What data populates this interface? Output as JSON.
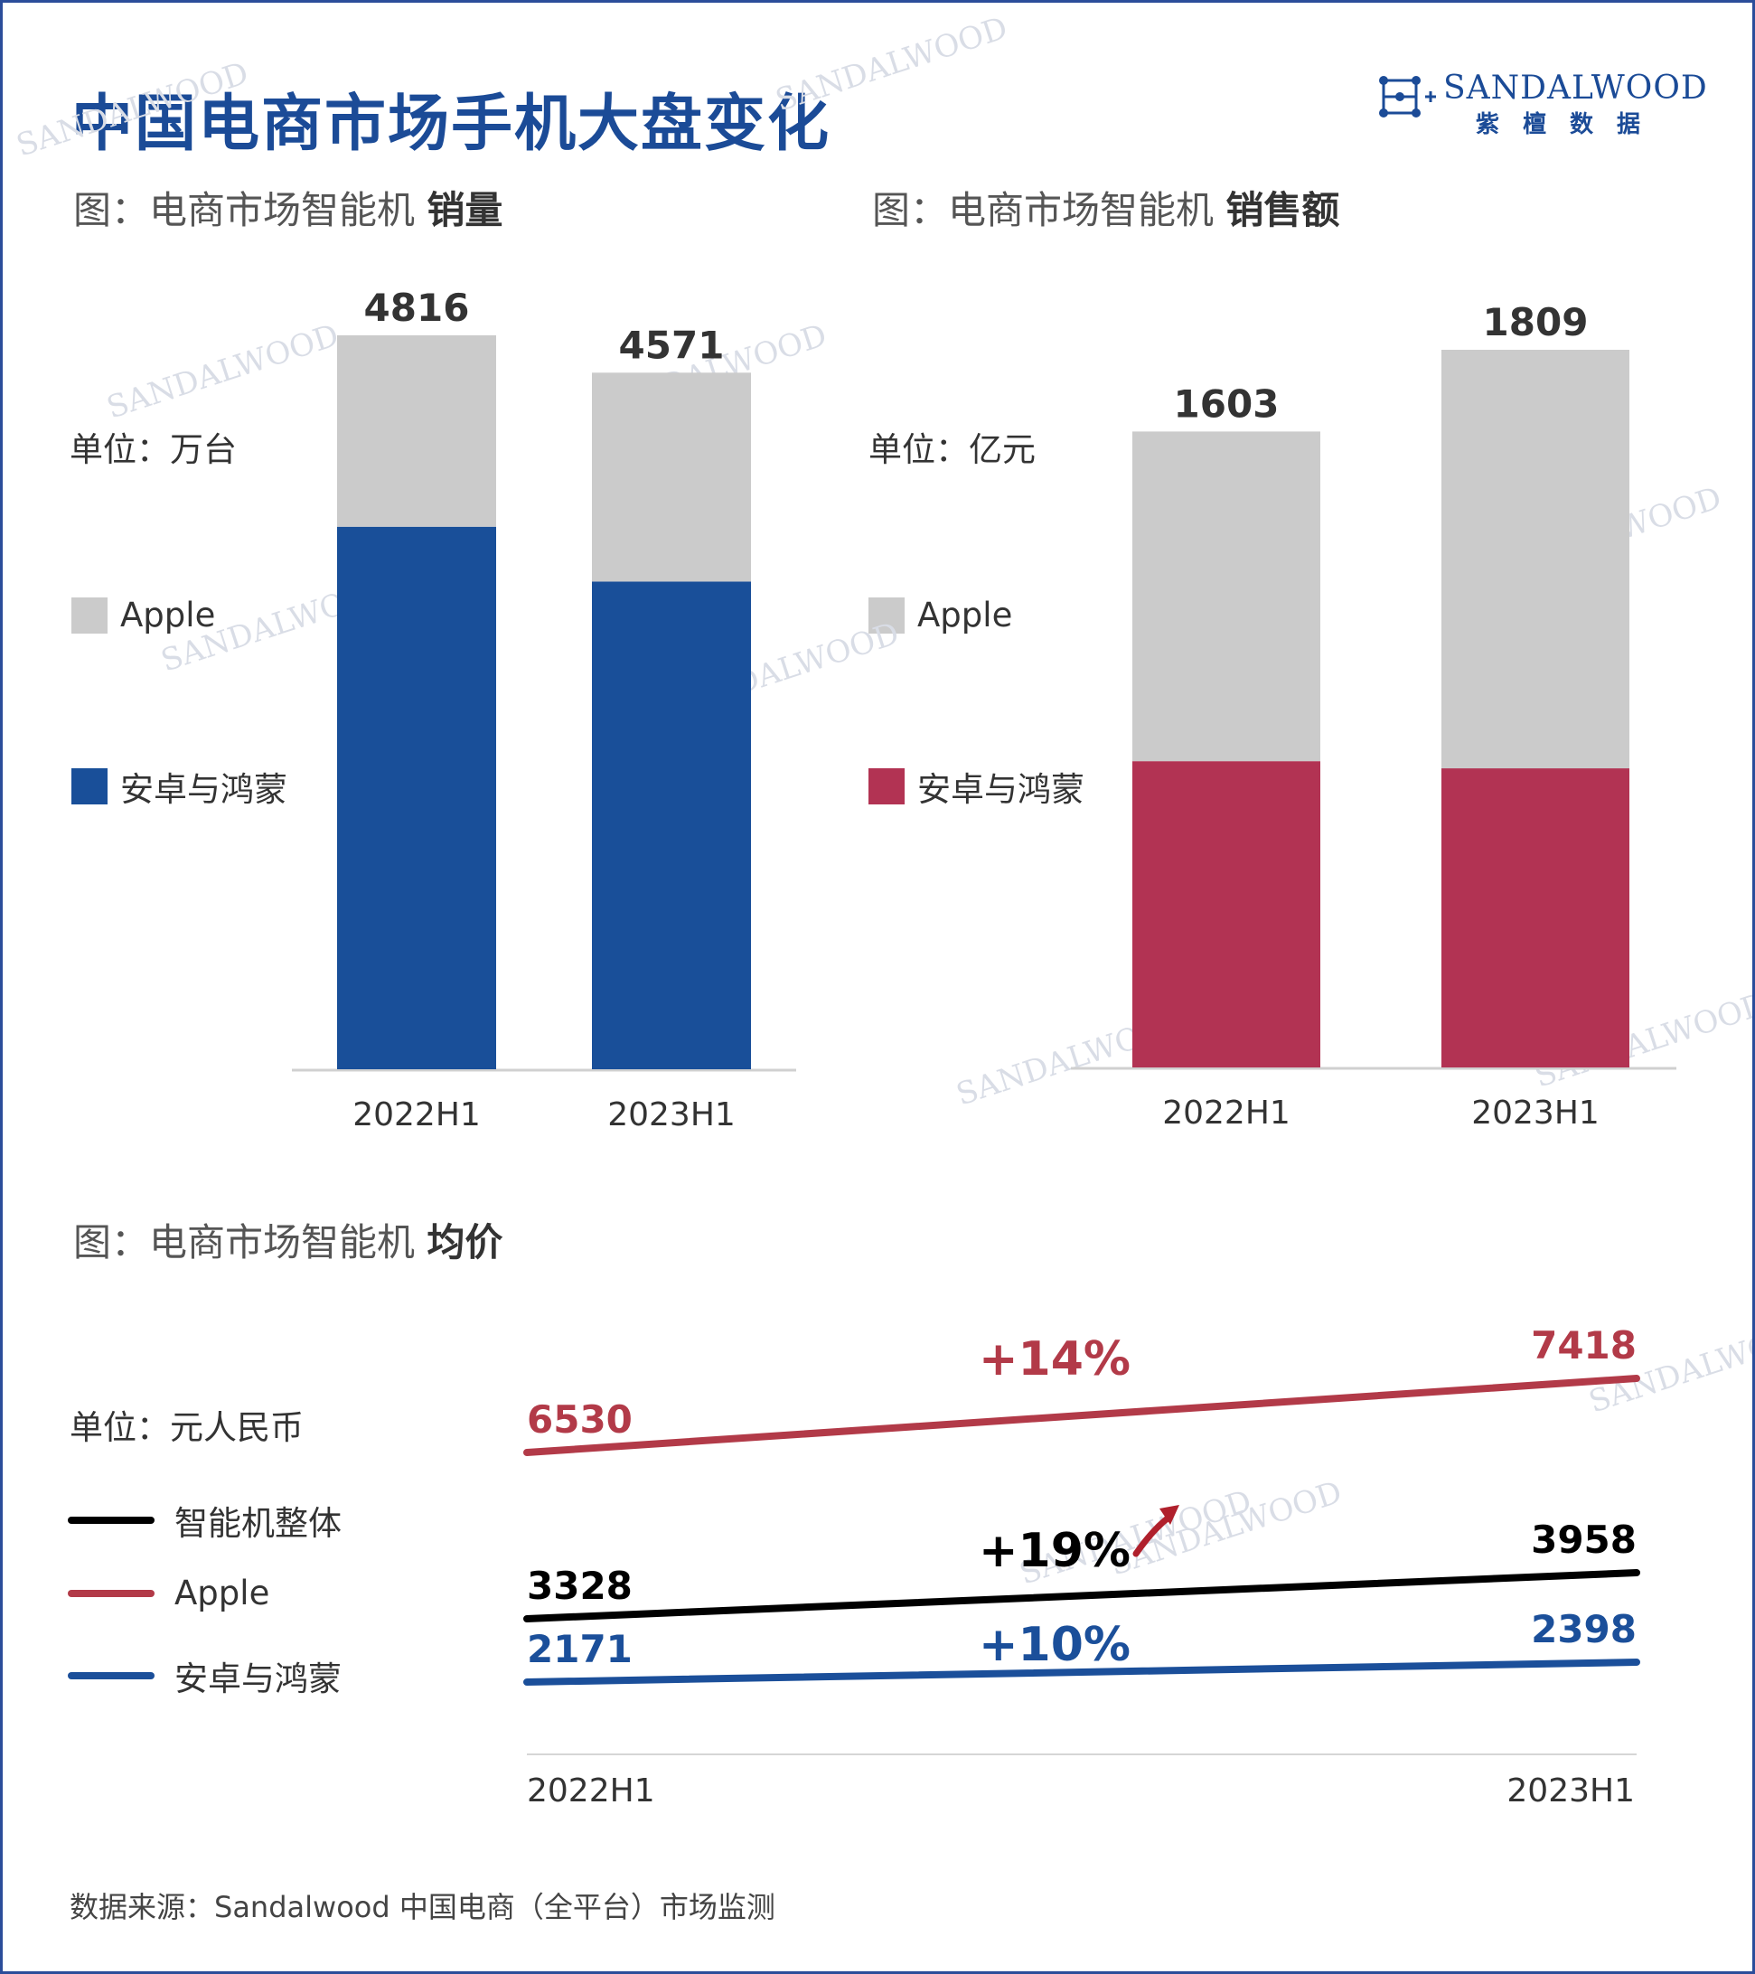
{
  "header": {
    "title": "中国电商市场手机大盘变化",
    "logo_en": "SANDALWOOD",
    "logo_cn": "紫檀数据",
    "watermark": "SANDALWOOD"
  },
  "colors": {
    "apple_gray": "#cbcbcb",
    "android_blue": "#194f99",
    "android_red": "#b23353",
    "overall_black": "#000000",
    "apple_line": "#b23a48",
    "android_line": "#1b4f9a"
  },
  "chart_volume": {
    "subtitle_prefix": "图：电商市场智能机 ",
    "subtitle_bold": "销量",
    "unit": "单位：万台",
    "legend": [
      {
        "label": "Apple",
        "color": "#cbcbcb"
      },
      {
        "label": "安卓与鸿蒙",
        "color": "#194f99"
      }
    ]
  },
  "chart_revenue": {
    "subtitle_prefix": "图：电商市场智能机 ",
    "subtitle_bold": "销售额",
    "unit": "单位：亿元",
    "legend": [
      {
        "label": "Apple",
        "color": "#cbcbcb"
      },
      {
        "label": "安卓与鸿蒙",
        "color": "#b23353"
      }
    ]
  },
  "chart_price": {
    "subtitle_prefix": "图：电商市场智能机 ",
    "subtitle_bold": "均价",
    "unit": "单位：元人民币",
    "legend": [
      {
        "label": "智能机整体",
        "color": "#000000"
      },
      {
        "label": "Apple",
        "color": "#b23a48"
      },
      {
        "label": "安卓与鸿蒙",
        "color": "#1b4f9a"
      }
    ]
  },
  "chart_data": [
    {
      "type": "bar",
      "stacked": true,
      "categories": [
        "2022H1",
        "2023H1"
      ],
      "series": [
        {
          "name": "安卓与鸿蒙",
          "values": [
            3560,
            3200
          ],
          "color": "#194f99"
        },
        {
          "name": "Apple",
          "values": [
            1256,
            1371
          ],
          "color": "#cbcbcb"
        }
      ],
      "totals": [
        4816,
        4571
      ],
      "total_labels": [
        "4816",
        "4571"
      ],
      "ylim": [
        0,
        4816
      ]
    },
    {
      "type": "bar",
      "stacked": true,
      "categories": [
        "2022H1",
        "2023H1"
      ],
      "series": [
        {
          "name": "安卓与鸿蒙",
          "values": [
            772,
            754
          ],
          "color": "#b23353"
        },
        {
          "name": "Apple",
          "values": [
            831,
            1055
          ],
          "color": "#cbcbcb"
        }
      ],
      "totals": [
        1603,
        1809
      ],
      "total_labels": [
        "1603",
        "1809"
      ],
      "ylim": [
        0,
        1809
      ]
    },
    {
      "type": "line",
      "categories": [
        "2022H1",
        "2023H1"
      ],
      "series": [
        {
          "name": "Apple",
          "values": [
            6530,
            7418
          ],
          "labels": [
            "6530",
            "7418"
          ],
          "change": "+14%",
          "color": "#b23a48"
        },
        {
          "name": "智能机整体",
          "values": [
            3328,
            3958
          ],
          "labels": [
            "3328",
            "3958"
          ],
          "change": "+19%",
          "color": "#000000"
        },
        {
          "name": "安卓与鸿蒙",
          "values": [
            2171,
            2398
          ],
          "labels": [
            "2171",
            "2398"
          ],
          "change": "+10%",
          "color": "#1b4f9a"
        }
      ]
    }
  ],
  "footer": {
    "source": "数据来源：Sandalwood 中国电商（全平台）市场监测"
  }
}
